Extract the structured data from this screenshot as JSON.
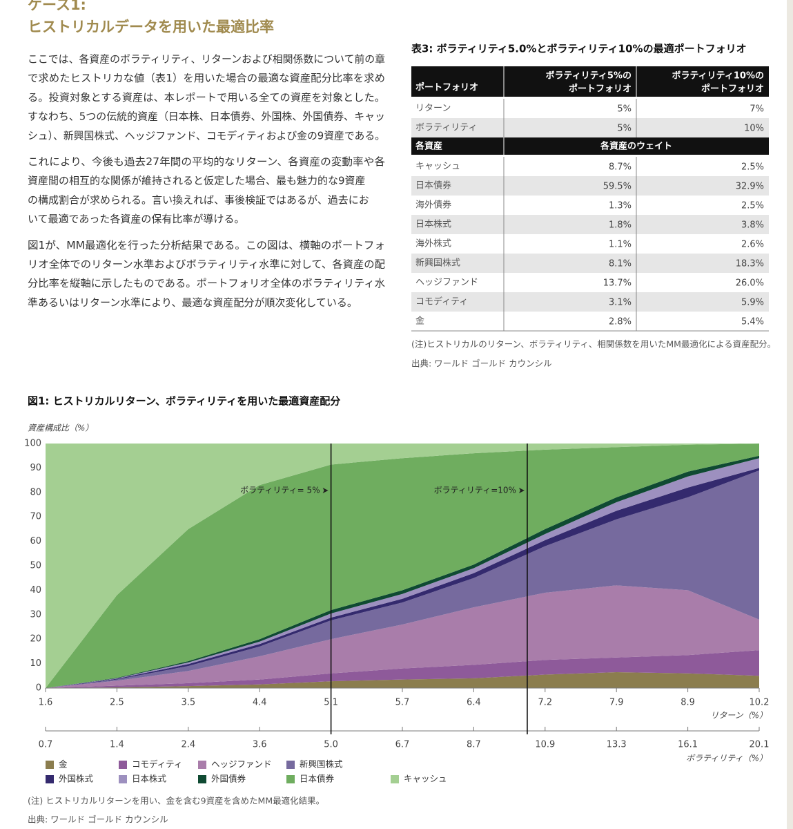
{
  "header": {
    "label": "ケース1:",
    "title": "ヒストリカルデータを用いた最適比率"
  },
  "paragraphs": [
    [
      "ここでは、各資産のボラティリティ、リターンおよび相関係数について前の章",
      "で求めたヒストリカな値（表1）を用いた場合の最適な資産配分比率を求め",
      "る。投資対象とする資産は、本レポートで用いる全ての資産を対象とした。",
      "すなわち、5つの伝統的資産（日本株、日本債券、外国株、外国債券、キャッ",
      "シュ）、新興国株式、ヘッジファンド、コモディティおよび金の9資産である。"
    ],
    [
      "これにより、今後も過去27年間の平均的なリターン、各資産の変動率や各",
      "資産間の相互的な関係が維持されると仮定した場合、最も魅力的な9資産",
      "の構成割合が求められる。言い換えれば、事後検証ではあるが、過去にお",
      "いて最適であった各資産の保有比率が導ける。"
    ],
    [
      "図1が、MM最適化を行った分析結果である。この図は、横軸のポートフォ",
      "リオ全体でのリターン水準およびボラティリティ水準に対して、各資産の配",
      "分比率を縦軸に示したものである。ポートフォリオ全体のボラティリティ水",
      "準あるいはリターン水準により、最適な資産配分が順次変化している。"
    ]
  ],
  "table": {
    "title": "表3: ボラティリティ5.0%とボラティリティ10%の最適ポートフォリオ",
    "header": [
      "ポートフォリオ",
      [
        "ボラティリティ5%の",
        "ポートフォリオ"
      ],
      [
        "ボラティリティ10%の",
        "ポートフォリオ"
      ]
    ],
    "portfolio_rows": [
      [
        "リターン",
        "5%",
        "7%"
      ],
      [
        "ボラティリティ",
        "5%",
        "10%"
      ]
    ],
    "section_header": [
      "各資産",
      "各資産のウェイト"
    ],
    "asset_rows": [
      [
        "キャッシュ",
        "8.7%",
        "2.5%"
      ],
      [
        "日本債券",
        "59.5%",
        "32.9%"
      ],
      [
        "海外債券",
        "1.3%",
        "2.5%"
      ],
      [
        "日本株式",
        "1.8%",
        "3.8%"
      ],
      [
        "海外株式",
        "1.1%",
        "2.6%"
      ],
      [
        "新興国株式",
        "8.1%",
        "18.3%"
      ],
      [
        "ヘッジファンド",
        "13.7%",
        "26.0%"
      ],
      [
        "コモディティ",
        "3.1%",
        "5.9%"
      ],
      [
        "金",
        "2.8%",
        "5.4%"
      ]
    ],
    "note": "(注)ヒストリカルのリターン、ボラティリティ、相関係数を用いたMM最適化による資産配分。",
    "source": "出典: ワールド ゴールド カウンシル"
  },
  "chart_data": {
    "type": "stacked_area",
    "title": "図1: ヒストリカルリターン、ボラティリティを用いた最適資産配分",
    "y_label": "資産構成比（%）",
    "x_label": "リターン（%）",
    "x2_label": "ボラティリティ（%）",
    "x": [
      1.6,
      2.5,
      3.5,
      4.4,
      5.1,
      5.7,
      6.4,
      7.2,
      7.9,
      8.9,
      10.2
    ],
    "xlim": [
      1.6,
      10.2
    ],
    "xticks": [
      1.6,
      2.5,
      3.5,
      4.4,
      5.1,
      5.7,
      6.4,
      7.2,
      7.9,
      8.9,
      10.2
    ],
    "x2ticks": [
      0.7,
      1.4,
      2.4,
      3.6,
      {
        "value": 5,
        "label": "5.0"
      },
      6.7,
      8.7,
      10.9,
      13.3,
      16.1,
      20.1
    ],
    "ylim": [
      0,
      100
    ],
    "yticks": [
      0,
      10,
      20,
      30,
      40,
      50,
      60,
      70,
      80,
      90,
      100
    ],
    "series": [
      {
        "name": "金",
        "color": "#8b7d4e",
        "values": [
          0,
          0.3,
          0.8,
          1.5,
          2.8,
          3.5,
          4,
          5.5,
          6.5,
          6,
          5
        ]
      },
      {
        "name": "コモディティ",
        "color": "#8e5a9a",
        "values": [
          0,
          0.7,
          1.2,
          2,
          3.2,
          4.5,
          5.5,
          6,
          6,
          7.5,
          10.5
        ]
      },
      {
        "name": "ヘッジファンド",
        "color": "#a97daa",
        "values": [
          0,
          2,
          5,
          9.5,
          14,
          18,
          23.5,
          27.5,
          29.5,
          26.5,
          12.5
        ]
      },
      {
        "name": "新興国株式",
        "color": "#766a9e",
        "values": [
          0,
          0.5,
          2,
          4,
          7.7,
          9,
          12,
          19,
          27,
          38,
          61
        ]
      },
      {
        "name": "外国株式",
        "color": "#342a6e",
        "values": [
          0,
          0.3,
          0.8,
          1,
          1.1,
          1.5,
          2,
          2.5,
          3.5,
          4,
          1
        ]
      },
      {
        "name": "日本株式",
        "color": "#9d90bf",
        "values": [
          0,
          0.2,
          0.7,
          1,
          1.7,
          2,
          2,
          2.5,
          3.5,
          4.5,
          4
        ]
      },
      {
        "name": "外国債券",
        "color": "#0f4a32",
        "values": [
          0,
          0.2,
          0.5,
          1,
          1.4,
          1.5,
          1.5,
          2,
          2,
          2,
          1
        ]
      },
      {
        "name": "日本債券",
        "color": "#6fad5f",
        "values": [
          0,
          33.8,
          54,
          63,
          59.5,
          54,
          45.5,
          32.5,
          20.5,
          11,
          5
        ]
      },
      {
        "name": "キャッシュ",
        "color": "#a4cf92",
        "values": [
          100,
          62,
          35,
          17,
          8.6,
          6,
          4,
          2.5,
          1.5,
          0.5,
          0
        ]
      }
    ],
    "annotations": [
      {
        "text": "ボラティリティ= 5%",
        "x": 5.1
      },
      {
        "text": "ボラティリティ=10%",
        "x": 7.0
      }
    ],
    "note": "(注) ヒストリカルリターンを用い、金を含む9資産を含めたMM最適化結果。",
    "source": "出典: ワールド ゴールド カウンシル"
  }
}
